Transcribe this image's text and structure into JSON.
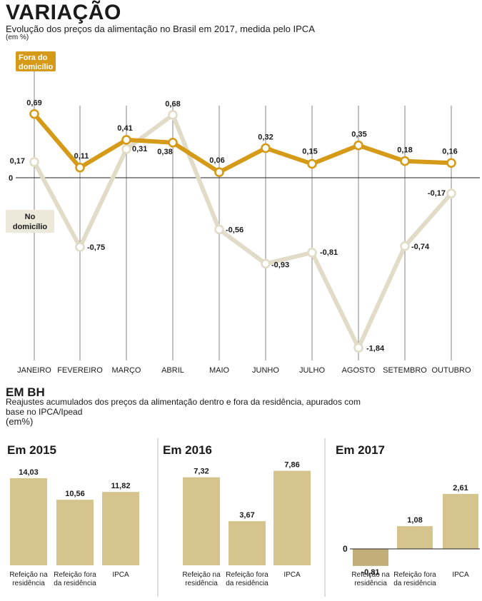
{
  "header": {
    "title": "VARIAÇÃO",
    "subtitle": "Evolução dos preços da alimentação no Brasil em 2017, medida pelo IPCA",
    "unit": "(em %)"
  },
  "section2": {
    "title": "EM BH",
    "description": "Reajustes acumulados dos preços da alimentação dentro e fora da residência, apurados com base no IPCA/Ipead",
    "unit": "(em%)"
  },
  "colors": {
    "fora": "#d59a17",
    "no": "#e1dcc8",
    "bar": "#d6c48f",
    "bar_negative": "#c3ad79",
    "label_no_bg": "#ece8da"
  },
  "chart_data": [
    {
      "type": "line",
      "categories": [
        "JANEIRO",
        "FEVEREIRO",
        "MARÇO",
        "ABRIL",
        "MAIO",
        "JUNHO",
        "JULHO",
        "AGOSTO",
        "SETEMBRO",
        "OUTUBRO"
      ],
      "series": [
        {
          "name": "Fora do domicílio",
          "values": [
            0.69,
            0.11,
            0.41,
            0.38,
            0.06,
            0.32,
            0.15,
            0.35,
            0.18,
            0.16
          ],
          "labels": [
            "0,69",
            "0,11",
            "0,41",
            "0,38",
            "0,06",
            "0,32",
            "0,15",
            "0,35",
            "0,18",
            "0,16"
          ]
        },
        {
          "name": "No domicílio",
          "values": [
            0.17,
            -0.75,
            0.31,
            0.68,
            -0.56,
            -0.93,
            -0.81,
            -1.84,
            -0.74,
            -0.17
          ],
          "labels": [
            "0,17",
            "-0,75",
            "0,31",
            "0,68",
            "-0,56",
            "-0,93",
            "-0,81",
            "-1,84",
            "-0,74",
            "-0,17"
          ]
        }
      ],
      "zero_label": "0",
      "ylim": [
        -1.84,
        0.69
      ]
    },
    {
      "type": "bar",
      "title": "Em 2015",
      "categories": [
        "Refeição na residência",
        "Refeição fora da residência",
        "IPCA"
      ],
      "values": [
        14.03,
        10.56,
        11.82
      ],
      "labels": [
        "14,03",
        "10,56",
        "11,82"
      ]
    },
    {
      "type": "bar",
      "title": "Em 2016",
      "categories": [
        "Refeição na residência",
        "Refeição fora da residência",
        "IPCA"
      ],
      "values": [
        7.32,
        3.67,
        7.86
      ],
      "labels": [
        "7,32",
        "3,67",
        "7,86"
      ]
    },
    {
      "type": "bar",
      "title": "Em 2017",
      "categories": [
        "Refeição na residência",
        "Refeição fora da residência",
        "IPCA"
      ],
      "values": [
        -0.81,
        1.08,
        2.61
      ],
      "labels": [
        "-0,81",
        "1,08",
        "2,61"
      ],
      "zero_label": "0"
    }
  ]
}
